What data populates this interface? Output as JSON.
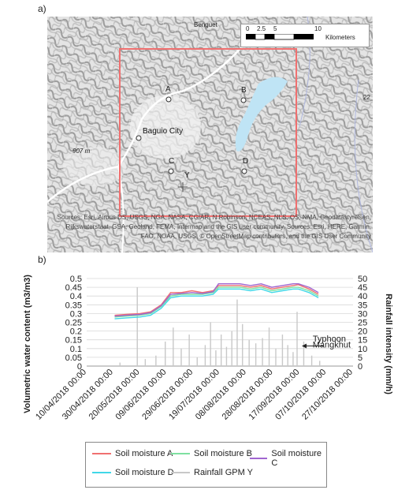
{
  "panel_a_label": "a)",
  "panel_b_label": "b)",
  "map": {
    "scale_ticks": [
      "0",
      "2.5",
      "5",
      "10"
    ],
    "scale_unit": "Kilometers",
    "place_labels": {
      "city": "Baguio City",
      "elevation": "907 m",
      "benguet": "Benguet",
      "road_number": "22"
    },
    "points": [
      "A",
      "B",
      "C",
      "D",
      "Y"
    ],
    "attribution": "Sources: Esri, Airbus DS, USGS, NGA, NASA, CGIAR, N Robinson, NCEAS, NLS, OS, NMA, Geodatastyrelsen, Rijkswaterstaat, GSA, Geoland, FEMA, Intermap and the GIS user community, Sources: Esri, HERE, Garmin, FAO, NOAA, USGS, © OpenStreetMap contributors, and the GIS User Community",
    "colors": {
      "study_box": "#f07070",
      "terrain": "#b8b8b8"
    }
  },
  "chart_data": {
    "type": "line",
    "ylabel": "Volumetric water content (m3/m3)",
    "y2label": "Rainfall intensity (mm/h)",
    "ylim": [
      0,
      0.5
    ],
    "y2lim": [
      0,
      50
    ],
    "yticks": [
      "0",
      "0.05",
      "0.1",
      "0.15",
      "0.2",
      "0.25",
      "0.3",
      "0.35",
      "0.4",
      "0.45",
      "0.5"
    ],
    "y2ticks": [
      "0",
      "5",
      "10",
      "15",
      "20",
      "25",
      "30",
      "35",
      "40",
      "45",
      "50"
    ],
    "xticks": [
      "10/04/2018 00:00",
      "30/04/2018 00:00",
      "20/05/2018 00:00",
      "09/06/2018 00:00",
      "29/06/2018 00:00",
      "19/07/2018 00:00",
      "08/08/2018 00:00",
      "28/08/2018 00:00",
      "17/09/2018 00:00",
      "07/10/2018 00:00",
      "27/10/2018 00:00"
    ],
    "xlim": [
      "2018-04-10",
      "2018-10-27"
    ],
    "annotation": {
      "lines": [
        "Typhoon",
        "Mangkhut"
      ],
      "date": "2018-09-15"
    },
    "grid": true,
    "legend_position": "bottom",
    "series": [
      {
        "name": "Soil moisture A",
        "color": "#f07070",
        "x": [
          "2018-05-01",
          "2018-05-10",
          "2018-05-20",
          "2018-05-28",
          "2018-06-05",
          "2018-06-12",
          "2018-06-20",
          "2018-06-28",
          "2018-07-06",
          "2018-07-14",
          "2018-07-18",
          "2018-07-26",
          "2018-08-03",
          "2018-08-11",
          "2018-08-19",
          "2018-08-27",
          "2018-09-04",
          "2018-09-12",
          "2018-09-16",
          "2018-09-24",
          "2018-10-01"
        ],
        "values": [
          0.29,
          0.295,
          0.3,
          0.31,
          0.35,
          0.42,
          0.42,
          0.43,
          0.42,
          0.43,
          0.46,
          0.46,
          0.46,
          0.45,
          0.46,
          0.44,
          0.45,
          0.46,
          0.465,
          0.44,
          0.41
        ]
      },
      {
        "name": "Soil moisture B",
        "color": "#7ee0a0",
        "x": [
          "2018-05-01",
          "2018-05-10",
          "2018-05-20",
          "2018-05-28",
          "2018-06-05",
          "2018-06-12",
          "2018-06-20",
          "2018-06-28",
          "2018-07-06",
          "2018-07-14",
          "2018-07-18",
          "2018-07-26",
          "2018-08-03",
          "2018-08-11",
          "2018-08-19",
          "2018-08-27",
          "2018-09-04",
          "2018-09-12",
          "2018-09-16",
          "2018-09-24",
          "2018-10-01"
        ],
        "values": [
          0.28,
          0.285,
          0.29,
          0.3,
          0.34,
          0.4,
          0.41,
          0.41,
          0.41,
          0.42,
          0.45,
          0.45,
          0.45,
          0.44,
          0.45,
          0.43,
          0.44,
          0.45,
          0.45,
          0.43,
          0.4
        ]
      },
      {
        "name": "Soil moisture C",
        "color": "#a066d0",
        "x": [
          "2018-05-01",
          "2018-05-10",
          "2018-05-20",
          "2018-05-28",
          "2018-06-05",
          "2018-06-12",
          "2018-06-20",
          "2018-06-28",
          "2018-07-06",
          "2018-07-14",
          "2018-07-18",
          "2018-07-26",
          "2018-08-03",
          "2018-08-11",
          "2018-08-19",
          "2018-08-27",
          "2018-09-04",
          "2018-09-12",
          "2018-09-16",
          "2018-09-24",
          "2018-10-01"
        ],
        "values": [
          0.285,
          0.29,
          0.295,
          0.305,
          0.345,
          0.41,
          0.415,
          0.42,
          0.415,
          0.425,
          0.47,
          0.47,
          0.47,
          0.46,
          0.47,
          0.45,
          0.46,
          0.47,
          0.47,
          0.45,
          0.42
        ]
      },
      {
        "name": "Soil moisture D",
        "color": "#40d8e8",
        "x": [
          "2018-05-01",
          "2018-05-10",
          "2018-05-20",
          "2018-05-28",
          "2018-06-05",
          "2018-06-12",
          "2018-06-20",
          "2018-06-28",
          "2018-07-06",
          "2018-07-14",
          "2018-07-18",
          "2018-07-26",
          "2018-08-03",
          "2018-08-11",
          "2018-08-19",
          "2018-08-27",
          "2018-09-04",
          "2018-09-12",
          "2018-09-16",
          "2018-09-24",
          "2018-10-01"
        ],
        "values": [
          0.27,
          0.275,
          0.28,
          0.29,
          0.33,
          0.39,
          0.4,
          0.4,
          0.4,
          0.41,
          0.44,
          0.44,
          0.44,
          0.43,
          0.44,
          0.42,
          0.43,
          0.44,
          0.44,
          0.42,
          0.39
        ]
      },
      {
        "name": "Rainfall GPM Y",
        "color": "#c8c8c8",
        "axis": "right",
        "x": [
          "2018-05-05",
          "2018-05-18",
          "2018-05-24",
          "2018-06-01",
          "2018-06-08",
          "2018-06-14",
          "2018-06-20",
          "2018-06-26",
          "2018-07-02",
          "2018-07-08",
          "2018-07-12",
          "2018-07-16",
          "2018-07-20",
          "2018-07-24",
          "2018-07-28",
          "2018-08-01",
          "2018-08-05",
          "2018-08-10",
          "2018-08-15",
          "2018-08-20",
          "2018-08-25",
          "2018-08-30",
          "2018-09-04",
          "2018-09-08",
          "2018-09-12",
          "2018-09-15",
          "2018-09-20",
          "2018-09-26",
          "2018-10-02"
        ],
        "values": [
          2,
          45,
          4,
          6,
          14,
          22,
          10,
          18,
          5,
          12,
          25,
          9,
          18,
          11,
          20,
          38,
          24,
          15,
          13,
          16,
          22,
          10,
          18,
          12,
          8,
          31,
          14,
          6,
          3
        ]
      }
    ]
  }
}
